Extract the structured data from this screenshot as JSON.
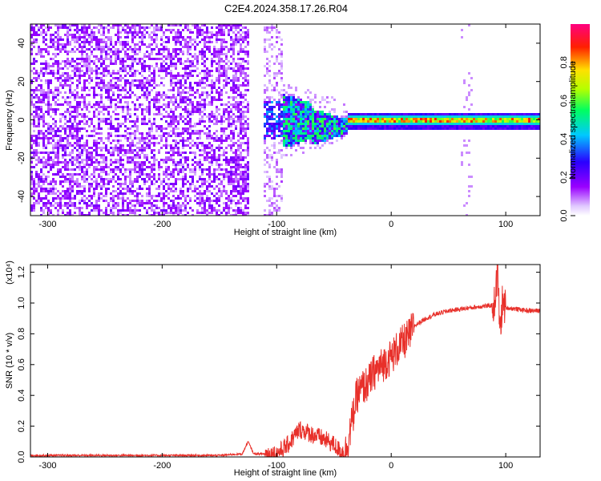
{
  "title": "C2E4.2024.358.17.26.R04",
  "chart_data": [
    {
      "type": "heatmap",
      "xlabel": "Height of straight line (km)",
      "ylabel": "Frequency (Hz)",
      "xlim": [
        -315,
        130
      ],
      "ylim": [
        -50,
        50
      ],
      "xticks": [
        -300,
        -200,
        -100,
        0,
        100
      ],
      "yticks": [
        -40,
        -20,
        0,
        20,
        40
      ],
      "colorbar": {
        "label": "Normalized spectral amplitude",
        "range": [
          0.0,
          1.0
        ],
        "ticks": [
          0.0,
          0.2,
          0.4,
          0.6,
          0.8
        ],
        "colormap": "rainbow: violet-blue-cyan-green-yellow-orange-red-magenta",
        "colors": [
          "#ffffff",
          "#e0c8ff",
          "#9a00ff",
          "#2a00ff",
          "#00c8ff",
          "#00ff60",
          "#b4ff00",
          "#ffe000",
          "#ff2000",
          "#ff0080"
        ]
      },
      "description": "Broadband noise (amplitude ~0.1-0.2) for heights below about -120 km; a white gap near -118 km; transition region -110 to -40 km with cyan/green spots near 0 Hz; narrow band centered at ~0 Hz (±3 Hz) from -40 km to 130 km with red/orange peaks along 0 Hz."
    },
    {
      "type": "line",
      "xlabel": "Height of straight line (km)",
      "ylabel": "SNR (10 * v/v)",
      "y_multiplier": "(x10⁴)",
      "xlim": [
        -315,
        130
      ],
      "ylim": [
        0,
        1.25
      ],
      "xticks": [
        -300,
        -200,
        -100,
        0,
        100
      ],
      "yticks": [
        0.0,
        0.2,
        0.4,
        0.6,
        0.8,
        1.0,
        1.2
      ],
      "line_color": "#e8302a",
      "x": [
        -315,
        -300,
        -250,
        -200,
        -150,
        -130,
        -125,
        -120,
        -115,
        -100,
        -90,
        -80,
        -70,
        -60,
        -50,
        -45,
        -40,
        -35,
        -30,
        -25,
        -20,
        -15,
        -10,
        -5,
        0,
        5,
        10,
        15,
        20,
        30,
        40,
        50,
        60,
        70,
        80,
        85,
        90,
        93,
        95,
        97,
        100,
        110,
        120,
        130
      ],
      "y": [
        0.01,
        0.01,
        0.01,
        0.01,
        0.01,
        0.02,
        0.1,
        0.02,
        0.02,
        0.02,
        0.08,
        0.18,
        0.15,
        0.12,
        0.08,
        0.04,
        0.03,
        0.2,
        0.4,
        0.45,
        0.48,
        0.55,
        0.58,
        0.62,
        0.65,
        0.7,
        0.74,
        0.78,
        0.85,
        0.9,
        0.93,
        0.95,
        0.96,
        0.97,
        0.98,
        0.98,
        0.99,
        1.2,
        0.8,
        1.0,
        0.97,
        0.96,
        0.95,
        0.95
      ]
    }
  ]
}
